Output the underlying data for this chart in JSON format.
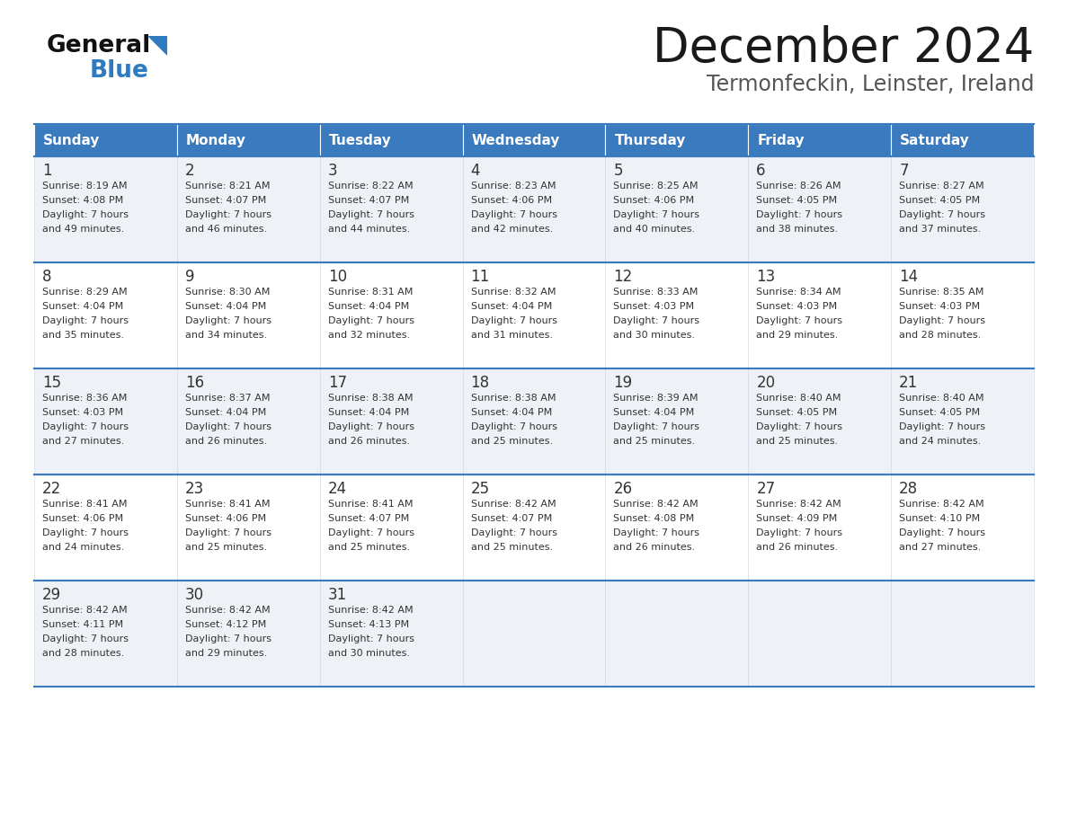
{
  "title": "December 2024",
  "subtitle": "Termonfeckin, Leinster, Ireland",
  "days_of_week": [
    "Sunday",
    "Monday",
    "Tuesday",
    "Wednesday",
    "Thursday",
    "Friday",
    "Saturday"
  ],
  "header_bg": "#3a7abf",
  "header_text": "#ffffff",
  "cell_bg_light": "#eef2f7",
  "cell_bg_white": "#ffffff",
  "border_color": "#3a7abf",
  "text_color": "#333333",
  "title_color": "#1a1a1a",
  "subtitle_color": "#555555",
  "logo_black": "#111111",
  "logo_blue": "#2e7bbf",
  "calendar_data": [
    {
      "day": 1,
      "sunrise": "8:19 AM",
      "sunset": "4:08 PM",
      "daylight_hours": 7,
      "daylight_minutes": 49
    },
    {
      "day": 2,
      "sunrise": "8:21 AM",
      "sunset": "4:07 PM",
      "daylight_hours": 7,
      "daylight_minutes": 46
    },
    {
      "day": 3,
      "sunrise": "8:22 AM",
      "sunset": "4:07 PM",
      "daylight_hours": 7,
      "daylight_minutes": 44
    },
    {
      "day": 4,
      "sunrise": "8:23 AM",
      "sunset": "4:06 PM",
      "daylight_hours": 7,
      "daylight_minutes": 42
    },
    {
      "day": 5,
      "sunrise": "8:25 AM",
      "sunset": "4:06 PM",
      "daylight_hours": 7,
      "daylight_minutes": 40
    },
    {
      "day": 6,
      "sunrise": "8:26 AM",
      "sunset": "4:05 PM",
      "daylight_hours": 7,
      "daylight_minutes": 38
    },
    {
      "day": 7,
      "sunrise": "8:27 AM",
      "sunset": "4:05 PM",
      "daylight_hours": 7,
      "daylight_minutes": 37
    },
    {
      "day": 8,
      "sunrise": "8:29 AM",
      "sunset": "4:04 PM",
      "daylight_hours": 7,
      "daylight_minutes": 35
    },
    {
      "day": 9,
      "sunrise": "8:30 AM",
      "sunset": "4:04 PM",
      "daylight_hours": 7,
      "daylight_minutes": 34
    },
    {
      "day": 10,
      "sunrise": "8:31 AM",
      "sunset": "4:04 PM",
      "daylight_hours": 7,
      "daylight_minutes": 32
    },
    {
      "day": 11,
      "sunrise": "8:32 AM",
      "sunset": "4:04 PM",
      "daylight_hours": 7,
      "daylight_minutes": 31
    },
    {
      "day": 12,
      "sunrise": "8:33 AM",
      "sunset": "4:03 PM",
      "daylight_hours": 7,
      "daylight_minutes": 30
    },
    {
      "day": 13,
      "sunrise": "8:34 AM",
      "sunset": "4:03 PM",
      "daylight_hours": 7,
      "daylight_minutes": 29
    },
    {
      "day": 14,
      "sunrise": "8:35 AM",
      "sunset": "4:03 PM",
      "daylight_hours": 7,
      "daylight_minutes": 28
    },
    {
      "day": 15,
      "sunrise": "8:36 AM",
      "sunset": "4:03 PM",
      "daylight_hours": 7,
      "daylight_minutes": 27
    },
    {
      "day": 16,
      "sunrise": "8:37 AM",
      "sunset": "4:04 PM",
      "daylight_hours": 7,
      "daylight_minutes": 26
    },
    {
      "day": 17,
      "sunrise": "8:38 AM",
      "sunset": "4:04 PM",
      "daylight_hours": 7,
      "daylight_minutes": 26
    },
    {
      "day": 18,
      "sunrise": "8:38 AM",
      "sunset": "4:04 PM",
      "daylight_hours": 7,
      "daylight_minutes": 25
    },
    {
      "day": 19,
      "sunrise": "8:39 AM",
      "sunset": "4:04 PM",
      "daylight_hours": 7,
      "daylight_minutes": 25
    },
    {
      "day": 20,
      "sunrise": "8:40 AM",
      "sunset": "4:05 PM",
      "daylight_hours": 7,
      "daylight_minutes": 25
    },
    {
      "day": 21,
      "sunrise": "8:40 AM",
      "sunset": "4:05 PM",
      "daylight_hours": 7,
      "daylight_minutes": 24
    },
    {
      "day": 22,
      "sunrise": "8:41 AM",
      "sunset": "4:06 PM",
      "daylight_hours": 7,
      "daylight_minutes": 24
    },
    {
      "day": 23,
      "sunrise": "8:41 AM",
      "sunset": "4:06 PM",
      "daylight_hours": 7,
      "daylight_minutes": 25
    },
    {
      "day": 24,
      "sunrise": "8:41 AM",
      "sunset": "4:07 PM",
      "daylight_hours": 7,
      "daylight_minutes": 25
    },
    {
      "day": 25,
      "sunrise": "8:42 AM",
      "sunset": "4:07 PM",
      "daylight_hours": 7,
      "daylight_minutes": 25
    },
    {
      "day": 26,
      "sunrise": "8:42 AM",
      "sunset": "4:08 PM",
      "daylight_hours": 7,
      "daylight_minutes": 26
    },
    {
      "day": 27,
      "sunrise": "8:42 AM",
      "sunset": "4:09 PM",
      "daylight_hours": 7,
      "daylight_minutes": 26
    },
    {
      "day": 28,
      "sunrise": "8:42 AM",
      "sunset": "4:10 PM",
      "daylight_hours": 7,
      "daylight_minutes": 27
    },
    {
      "day": 29,
      "sunrise": "8:42 AM",
      "sunset": "4:11 PM",
      "daylight_hours": 7,
      "daylight_minutes": 28
    },
    {
      "day": 30,
      "sunrise": "8:42 AM",
      "sunset": "4:12 PM",
      "daylight_hours": 7,
      "daylight_minutes": 29
    },
    {
      "day": 31,
      "sunrise": "8:42 AM",
      "sunset": "4:13 PM",
      "daylight_hours": 7,
      "daylight_minutes": 30
    }
  ]
}
